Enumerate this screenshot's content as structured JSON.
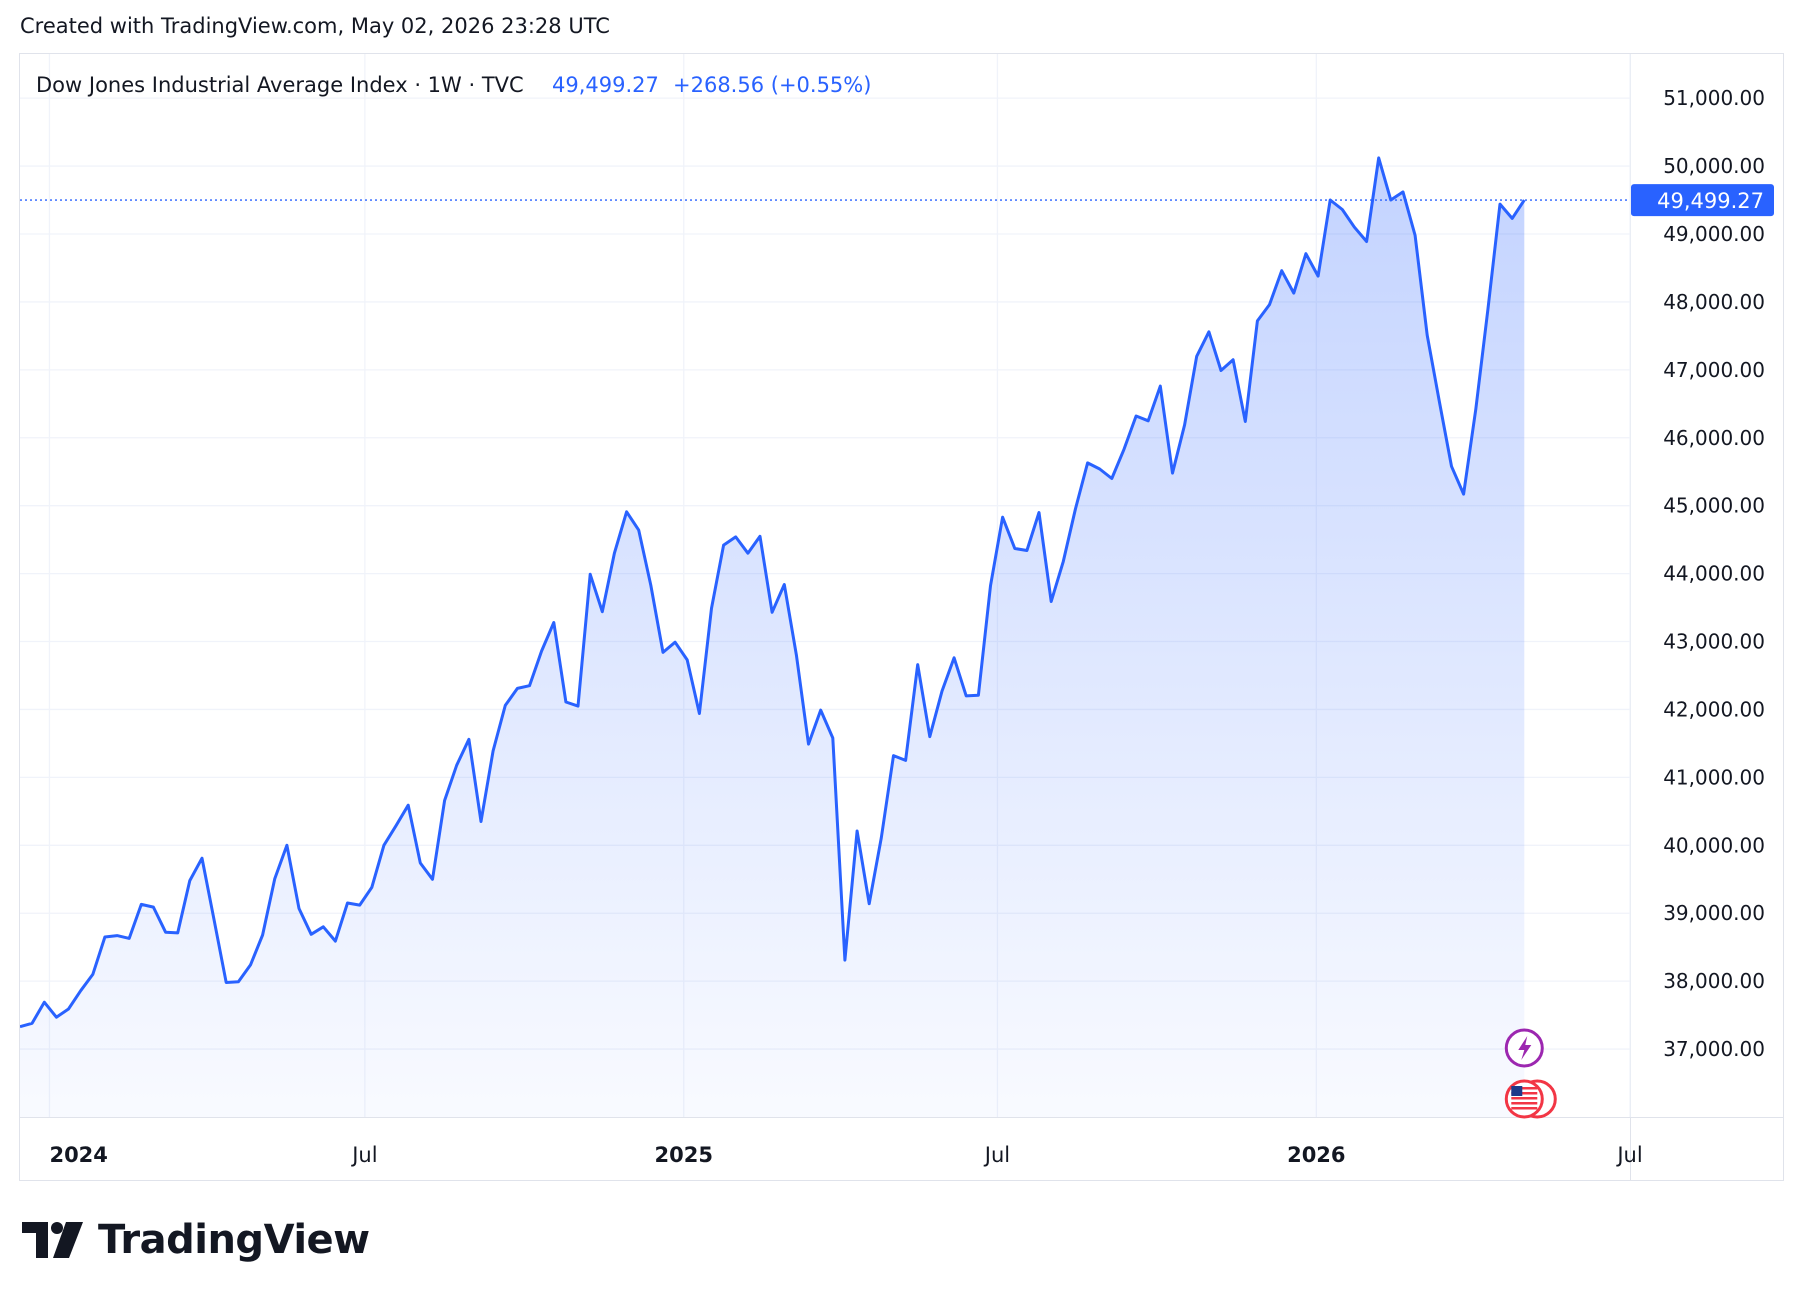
{
  "caption": "Created with TradingView.com, May 02, 2026 23:28 UTC",
  "brand": {
    "name": "TradingView",
    "logo_icon": "tradingview-logo-icon"
  },
  "colors": {
    "line": "#2962ff",
    "area_top": "#2962ff",
    "text": "#131722",
    "axis_text": "#131722",
    "grid": "#f0f3fa",
    "price_tag_bg": "#2962ff",
    "event_lightning": "#9c27b0",
    "event_flag": "#f23645"
  },
  "legend": {
    "symbol": "Dow Jones Industrial Average Index · 1W · TVC",
    "price": "49,499.27",
    "change": "+268.56 (+0.55%)"
  },
  "chart_data": {
    "type": "area",
    "title": "Dow Jones Industrial Average Index",
    "interval": "1W",
    "source": "TVC",
    "ylim": [
      36000,
      51650
    ],
    "y_ticks": [
      37000,
      38000,
      39000,
      40000,
      41000,
      42000,
      43000,
      44000,
      45000,
      46000,
      47000,
      48000,
      49000,
      50000,
      51000
    ],
    "y_tick_labels": [
      "37,000.00",
      "38,000.00",
      "39,000.00",
      "40,000.00",
      "41,000.00",
      "42,000.00",
      "43,000.00",
      "44,000.00",
      "45,000.00",
      "46,000.00",
      "47,000.00",
      "48,000.00",
      "49,000.00",
      "50,000.00",
      "51,000.00"
    ],
    "x_ticks": [
      {
        "label": "2024",
        "date": "2024-01-01",
        "bold": true
      },
      {
        "label": "Jul",
        "date": "2024-07-01",
        "bold": false
      },
      {
        "label": "2025",
        "date": "2025-01-01",
        "bold": true
      },
      {
        "label": "Jul",
        "date": "2025-07-01",
        "bold": false
      },
      {
        "label": "2026",
        "date": "2026-01-01",
        "bold": true
      },
      {
        "label": "Jul",
        "date": "2026-07-01",
        "bold": false
      }
    ],
    "x_range": [
      "2023-12-15",
      "2026-07-01"
    ],
    "last_price": 49499.27,
    "last_price_label": "49,499.27",
    "grid": true,
    "series": [
      {
        "values": [
          [
            "2023-12-15",
            37330
          ],
          [
            "2023-12-22",
            37380
          ],
          [
            "2023-12-29",
            37690
          ],
          [
            "2024-01-05",
            37470
          ],
          [
            "2024-01-12",
            37590
          ],
          [
            "2024-01-19",
            37860
          ],
          [
            "2024-01-26",
            38100
          ],
          [
            "2024-02-02",
            38650
          ],
          [
            "2024-02-09",
            38670
          ],
          [
            "2024-02-16",
            38630
          ],
          [
            "2024-02-23",
            39130
          ],
          [
            "2024-03-01",
            39090
          ],
          [
            "2024-03-08",
            38720
          ],
          [
            "2024-03-15",
            38710
          ],
          [
            "2024-03-22",
            39480
          ],
          [
            "2024-03-29",
            39810
          ],
          [
            "2024-04-05",
            38900
          ],
          [
            "2024-04-12",
            37980
          ],
          [
            "2024-04-19",
            37990
          ],
          [
            "2024-04-26",
            38240
          ],
          [
            "2024-05-03",
            38680
          ],
          [
            "2024-05-10",
            39510
          ],
          [
            "2024-05-17",
            40000
          ],
          [
            "2024-05-24",
            39070
          ],
          [
            "2024-05-31",
            38690
          ],
          [
            "2024-06-07",
            38800
          ],
          [
            "2024-06-14",
            38590
          ],
          [
            "2024-06-21",
            39150
          ],
          [
            "2024-06-28",
            39120
          ],
          [
            "2024-07-05",
            39380
          ],
          [
            "2024-07-12",
            40000
          ],
          [
            "2024-07-19",
            40290
          ],
          [
            "2024-07-26",
            40590
          ],
          [
            "2024-08-02",
            39740
          ],
          [
            "2024-08-09",
            39500
          ],
          [
            "2024-08-16",
            40660
          ],
          [
            "2024-08-23",
            41180
          ],
          [
            "2024-08-30",
            41560
          ],
          [
            "2024-09-06",
            40350
          ],
          [
            "2024-09-13",
            41390
          ],
          [
            "2024-09-20",
            42060
          ],
          [
            "2024-09-27",
            42310
          ],
          [
            "2024-10-04",
            42350
          ],
          [
            "2024-10-11",
            42860
          ],
          [
            "2024-10-18",
            43280
          ],
          [
            "2024-10-25",
            42110
          ],
          [
            "2024-11-01",
            42050
          ],
          [
            "2024-11-08",
            43990
          ],
          [
            "2024-11-15",
            43440
          ],
          [
            "2024-11-22",
            44300
          ],
          [
            "2024-11-29",
            44910
          ],
          [
            "2024-12-06",
            44640
          ],
          [
            "2024-12-13",
            43830
          ],
          [
            "2024-12-20",
            42840
          ],
          [
            "2024-12-27",
            42990
          ],
          [
            "2025-01-03",
            42730
          ],
          [
            "2025-01-10",
            41940
          ],
          [
            "2025-01-17",
            43490
          ],
          [
            "2025-01-24",
            44420
          ],
          [
            "2025-01-31",
            44540
          ],
          [
            "2025-02-07",
            44300
          ],
          [
            "2025-02-14",
            44550
          ],
          [
            "2025-02-21",
            43430
          ],
          [
            "2025-02-28",
            43840
          ],
          [
            "2025-03-07",
            42800
          ],
          [
            "2025-03-14",
            41490
          ],
          [
            "2025-03-21",
            41990
          ],
          [
            "2025-03-28",
            41580
          ],
          [
            "2025-04-04",
            38310
          ],
          [
            "2025-04-11",
            40210
          ],
          [
            "2025-04-18",
            39140
          ],
          [
            "2025-04-25",
            40110
          ],
          [
            "2025-05-02",
            41320
          ],
          [
            "2025-05-09",
            41250
          ],
          [
            "2025-05-16",
            42660
          ],
          [
            "2025-05-23",
            41600
          ],
          [
            "2025-05-30",
            42270
          ],
          [
            "2025-06-06",
            42760
          ],
          [
            "2025-06-13",
            42200
          ],
          [
            "2025-06-20",
            42210
          ],
          [
            "2025-06-27",
            43820
          ],
          [
            "2025-07-04",
            44830
          ],
          [
            "2025-07-11",
            44370
          ],
          [
            "2025-07-18",
            44340
          ],
          [
            "2025-07-25",
            44900
          ],
          [
            "2025-08-01",
            43590
          ],
          [
            "2025-08-08",
            44180
          ],
          [
            "2025-08-15",
            44950
          ],
          [
            "2025-08-22",
            45630
          ],
          [
            "2025-08-29",
            45540
          ],
          [
            "2025-09-05",
            45400
          ],
          [
            "2025-09-12",
            45830
          ],
          [
            "2025-09-19",
            46320
          ],
          [
            "2025-09-26",
            46250
          ],
          [
            "2025-10-03",
            46760
          ],
          [
            "2025-10-10",
            45480
          ],
          [
            "2025-10-17",
            46190
          ],
          [
            "2025-10-24",
            47200
          ],
          [
            "2025-10-31",
            47560
          ],
          [
            "2025-11-07",
            46990
          ],
          [
            "2025-11-14",
            47150
          ],
          [
            "2025-11-21",
            46240
          ],
          [
            "2025-11-28",
            47720
          ],
          [
            "2025-12-05",
            47960
          ],
          [
            "2025-12-12",
            48460
          ],
          [
            "2025-12-19",
            48130
          ],
          [
            "2025-12-26",
            48710
          ],
          [
            "2026-01-02",
            48380
          ],
          [
            "2026-01-09",
            49500
          ],
          [
            "2026-01-16",
            49360
          ],
          [
            "2026-01-23",
            49100
          ],
          [
            "2026-01-30",
            48890
          ],
          [
            "2026-02-06",
            50120
          ],
          [
            "2026-02-13",
            49500
          ],
          [
            "2026-02-20",
            49620
          ],
          [
            "2026-02-27",
            48980
          ],
          [
            "2026-03-06",
            47510
          ],
          [
            "2026-03-13",
            46530
          ],
          [
            "2026-03-20",
            45580
          ],
          [
            "2026-03-27",
            45170
          ],
          [
            "2026-04-03",
            46420
          ],
          [
            "2026-04-10",
            47890
          ],
          [
            "2026-04-17",
            49440
          ],
          [
            "2026-04-24",
            49230
          ],
          [
            "2026-05-01",
            49499.27
          ]
        ]
      }
    ],
    "events": [
      {
        "type": "lightning",
        "icon": "lightning-event-icon"
      },
      {
        "type": "us-economic",
        "icon": "us-flag-event-icon"
      }
    ]
  }
}
